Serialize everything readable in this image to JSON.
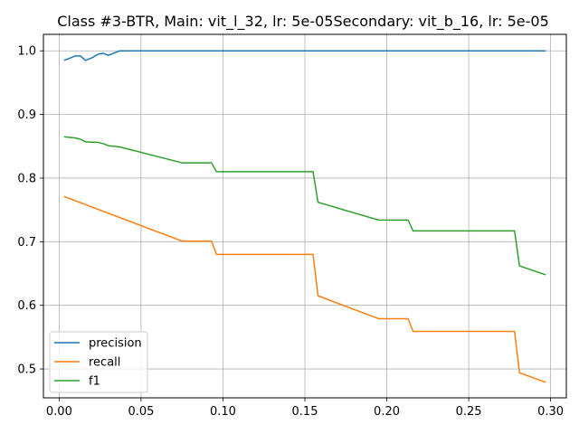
{
  "chart_data": {
    "type": "line",
    "title": "Class #3-BTR, Main: vit_l_32, lr: 5e-05Secondary: vit_b_16, lr: 5e-05",
    "xlabel": "",
    "ylabel": "",
    "xlim": [
      -0.0096,
      0.3096
    ],
    "ylim": [
      0.4546,
      1.0259
    ],
    "xticks": [
      0.0,
      0.05,
      0.1,
      0.15,
      0.2,
      0.25,
      0.3
    ],
    "xtick_labels": [
      "0.00",
      "0.05",
      "0.10",
      "0.15",
      "0.20",
      "0.25",
      "0.30"
    ],
    "yticks": [
      0.5,
      0.6,
      0.7,
      0.8,
      0.9,
      1.0
    ],
    "ytick_labels": [
      "0.5",
      "0.6",
      "0.7",
      "0.8",
      "0.9",
      "1.0"
    ],
    "grid": true,
    "legend_position": "lower-left",
    "series": [
      {
        "name": "precision",
        "color": "#1f77b4",
        "x": [
          0.003,
          0.01,
          0.013,
          0.016,
          0.02,
          0.024,
          0.027,
          0.03,
          0.033,
          0.037,
          0.05,
          0.1,
          0.15,
          0.2,
          0.25,
          0.297
        ],
        "y": [
          0.985,
          0.992,
          0.992,
          0.985,
          0.989,
          0.995,
          0.996,
          0.993,
          0.996,
          1.0,
          1.0,
          1.0,
          1.0,
          1.0,
          1.0,
          1.0
        ]
      },
      {
        "name": "recall",
        "color": "#ff7f0e",
        "x": [
          0.003,
          0.075,
          0.093,
          0.096,
          0.155,
          0.158,
          0.195,
          0.213,
          0.216,
          0.278,
          0.281,
          0.297
        ],
        "y": [
          0.771,
          0.701,
          0.701,
          0.68,
          0.68,
          0.615,
          0.579,
          0.579,
          0.559,
          0.559,
          0.494,
          0.479
        ]
      },
      {
        "name": "f1",
        "color": "#2ca02c",
        "x": [
          0.003,
          0.01,
          0.013,
          0.016,
          0.024,
          0.027,
          0.03,
          0.037,
          0.075,
          0.093,
          0.096,
          0.155,
          0.158,
          0.195,
          0.213,
          0.216,
          0.278,
          0.281,
          0.297
        ],
        "y": [
          0.865,
          0.863,
          0.861,
          0.857,
          0.856,
          0.854,
          0.851,
          0.849,
          0.824,
          0.824,
          0.81,
          0.81,
          0.762,
          0.734,
          0.734,
          0.717,
          0.717,
          0.662,
          0.648
        ]
      }
    ]
  }
}
